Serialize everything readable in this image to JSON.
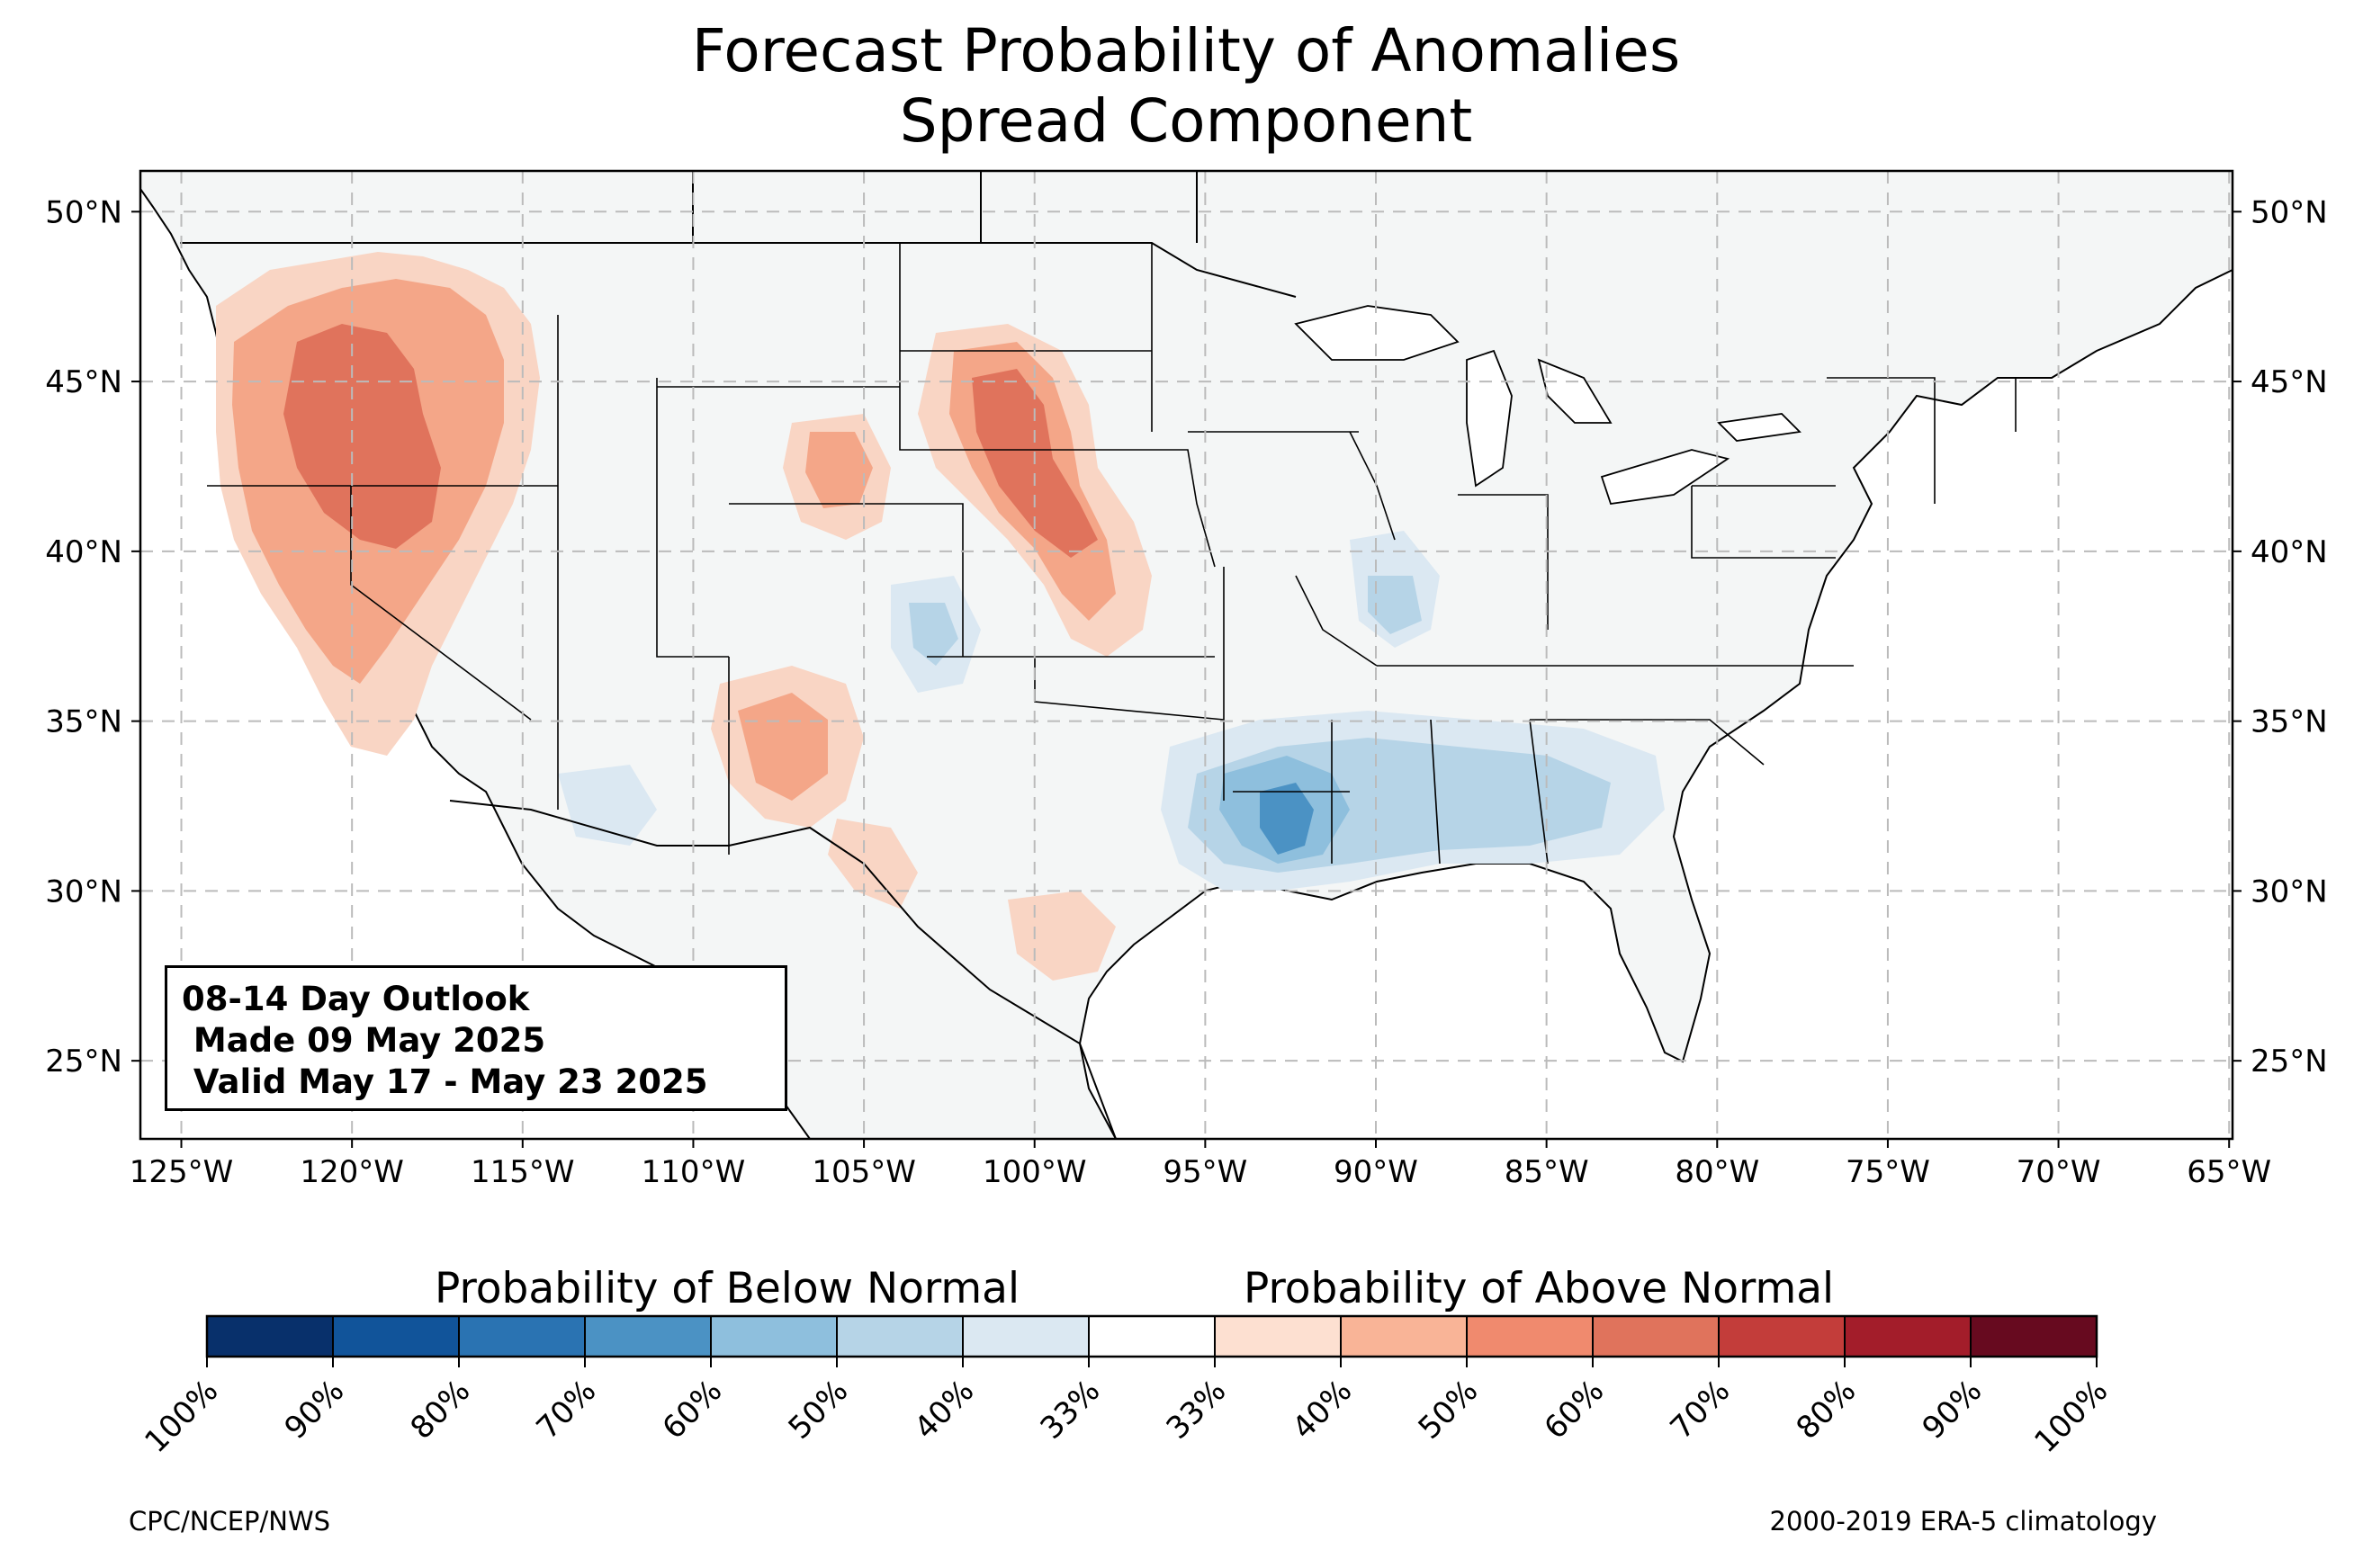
{
  "title": {
    "line1": "Forecast Probability of Anomalies",
    "line2": "Spread Component"
  },
  "info_box": {
    "line1": "08-14 Day Outlook",
    "line2": " Made 09 May 2025",
    "line3": " Valid May 17 - May 23 2025"
  },
  "map": {
    "lon_range": [
      -126.2,
      -64.9
    ],
    "lat_range": [
      22.7,
      51.2
    ],
    "lon_ticks": [
      {
        "value": -125,
        "label": "125°W"
      },
      {
        "value": -120,
        "label": "120°W"
      },
      {
        "value": -115,
        "label": "115°W"
      },
      {
        "value": -110,
        "label": "110°W"
      },
      {
        "value": -105,
        "label": "105°W"
      },
      {
        "value": -100,
        "label": "100°W"
      },
      {
        "value": -95,
        "label": "95°W"
      },
      {
        "value": -90,
        "label": "90°W"
      },
      {
        "value": -85,
        "label": "85°W"
      },
      {
        "value": -80,
        "label": "80°W"
      },
      {
        "value": -75,
        "label": "75°W"
      },
      {
        "value": -70,
        "label": "70°W"
      },
      {
        "value": -65,
        "label": "65°W"
      }
    ],
    "lat_ticks": [
      {
        "value": 25,
        "label": "25°N"
      },
      {
        "value": 30,
        "label": "30°N"
      },
      {
        "value": 35,
        "label": "35°N"
      },
      {
        "value": 40,
        "label": "40°N"
      },
      {
        "value": 45,
        "label": "45°N"
      },
      {
        "value": 50,
        "label": "50°N"
      }
    ],
    "grid": true,
    "colors": {
      "land": "#f4f6f6",
      "above_40": "#f9d5c4",
      "above_50": "#f4a688",
      "above_60": "#e0735c",
      "below_40": "#dbe8f2",
      "below_50": "#b6d4e7",
      "below_60": "#8ebfdd",
      "below_70": "#4b92c4"
    }
  },
  "colorbar": {
    "below_label": "Probability of Below Normal",
    "above_label": "Probability of Above Normal",
    "colors": [
      "#08306b",
      "#11549a",
      "#2a73b2",
      "#4b92c4",
      "#8ebfdd",
      "#b6d4e7",
      "#dbe8f2",
      "#ffffff",
      "#fde0d1",
      "#f9b497",
      "#f08a6e",
      "#e0735c",
      "#c33d3a",
      "#a31d2a",
      "#670a1f"
    ],
    "ticks": [
      "100%",
      "90%",
      "80%",
      "70%",
      "60%",
      "50%",
      "40%",
      "33%",
      "33%",
      "40%",
      "50%",
      "60%",
      "70%",
      "80%",
      "90%",
      "100%"
    ]
  },
  "credits": {
    "left": "CPC/NCEP/NWS",
    "right": "2000-2019 ERA-5 climatology"
  }
}
